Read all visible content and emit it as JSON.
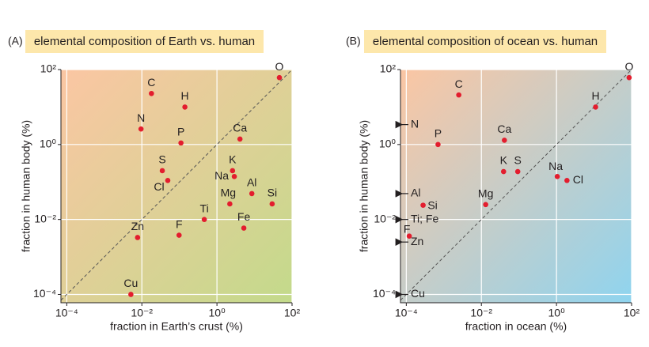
{
  "chart_data": [
    {
      "type": "scatter",
      "panel_label": "(A)",
      "title": "elemental composition of Earth vs. human",
      "x_label": "fraction in Earth’s crust (%)",
      "y_label": "fraction in human body (%)",
      "log_scale": true,
      "grid": true,
      "diagonal": true,
      "background": [
        "#fbc6a3",
        "#c3da8b"
      ],
      "xlim": [
        7e-05,
        100
      ],
      "ylim": [
        6e-05,
        100
      ],
      "xticks": [
        {
          "value": 0.0001,
          "label": "10⁻⁴"
        },
        {
          "value": 0.01,
          "label": "10⁻²"
        },
        {
          "value": 1,
          "label": "10⁰"
        },
        {
          "value": 100,
          "label": "10²"
        }
      ],
      "yticks": [
        {
          "value": 0.0001,
          "label": "10⁻⁴"
        },
        {
          "value": 0.01,
          "label": "10⁻²"
        },
        {
          "value": 1,
          "label": "10⁰"
        },
        {
          "value": 100,
          "label": "10²"
        }
      ],
      "series": [
        {
          "color": "#e31d2e",
          "labels": [
            "O",
            "C",
            "H",
            "N",
            "P",
            "Ca",
            "S",
            "Cl",
            "K",
            "Na",
            "Al",
            "Si",
            "Mg",
            "Ti",
            "Fe",
            "F",
            "Zn",
            "Cu"
          ],
          "x": [
            46,
            0.018,
            0.14,
            0.0095,
            0.11,
            4.1,
            0.035,
            0.049,
            2.6,
            2.9,
            8.5,
            29.5,
            2.2,
            0.46,
            5.2,
            0.098,
            0.0077,
            0.0051
          ],
          "values": [
            61,
            23,
            10,
            2.6,
            1.1,
            1.4,
            0.2,
            0.11,
            0.2,
            0.14,
            0.049,
            0.026,
            0.026,
            0.01,
            0.0059,
            0.0038,
            0.0033,
            0.0001
          ]
        }
      ]
    },
    {
      "type": "scatter",
      "panel_label": "(B)",
      "title": "elemental composition of ocean vs. human",
      "x_label": "fraction in ocean (%)",
      "y_label": "fraction in human body (%)",
      "log_scale": true,
      "grid": true,
      "diagonal": true,
      "background": [
        "#fbc6a3",
        "#8fd4ef"
      ],
      "xlim": [
        7e-05,
        100
      ],
      "ylim": [
        6e-05,
        100
      ],
      "xticks": [
        {
          "value": 0.0001,
          "label": "10⁻⁴"
        },
        {
          "value": 0.01,
          "label": "10⁻²"
        },
        {
          "value": 1,
          "label": "10⁰"
        },
        {
          "value": 100,
          "label": "10²"
        }
      ],
      "yticks": [
        {
          "value": 0.0001,
          "label": "10⁻⁴"
        },
        {
          "value": 0.01,
          "label": "10⁻²"
        },
        {
          "value": 1,
          "label": "10⁰"
        },
        {
          "value": 100,
          "label": "10²"
        }
      ],
      "series": [
        {
          "color": "#e31d2e",
          "labels": [
            "O",
            "C",
            "H",
            "P",
            "Ca",
            "K",
            "S",
            "Na",
            "Cl",
            "Mg",
            "Si",
            "F"
          ],
          "x": [
            86,
            0.0025,
            11,
            0.0007,
            0.041,
            0.039,
            0.093,
            1.05,
            1.9,
            0.013,
            0.00028,
            0.00012
          ],
          "values": [
            61,
            21,
            10,
            1.0,
            1.3,
            0.19,
            0.19,
            0.14,
            0.11,
            0.025,
            0.024,
            0.0036
          ]
        }
      ],
      "edge_markers": {
        "labels": [
          "N",
          "Al",
          "Ti; Fe",
          "Zn",
          "Cu"
        ],
        "values": [
          3.4,
          0.049,
          0.01,
          0.0025,
          0.0001
        ]
      }
    }
  ]
}
